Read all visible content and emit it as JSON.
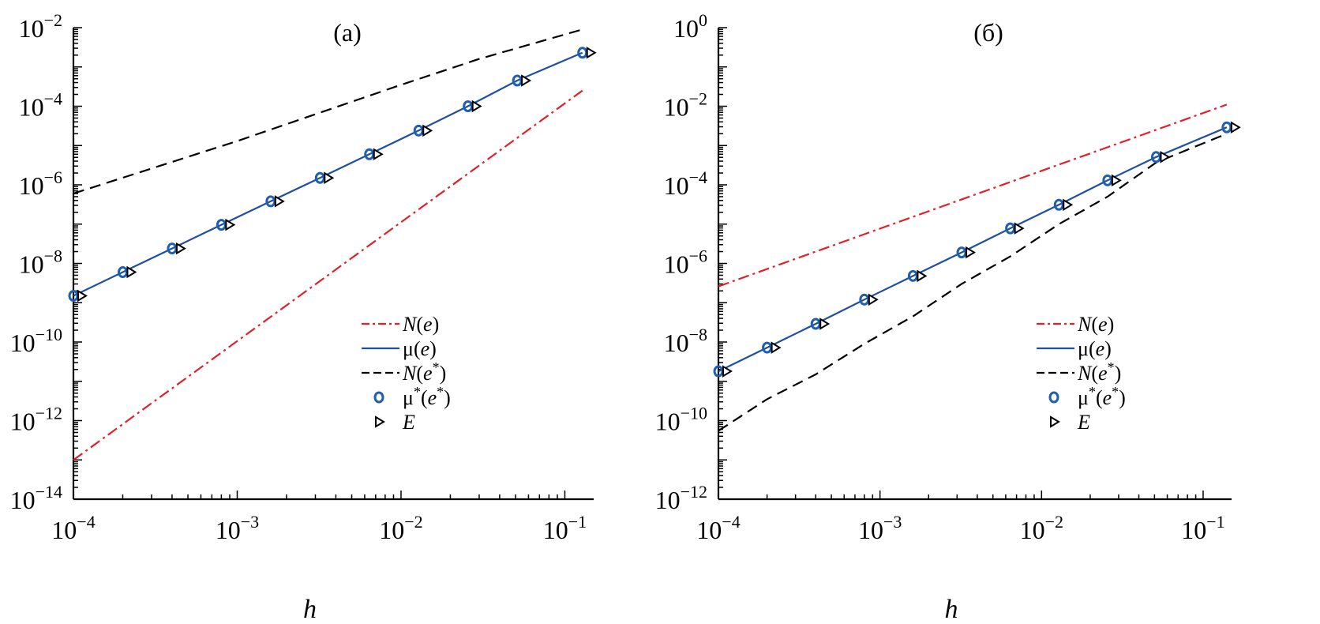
{
  "chart_data": [
    {
      "type": "line",
      "title": "(а)",
      "xlabel": "h",
      "ylabel": "",
      "xscale": "log",
      "yscale": "log",
      "xlim": [
        0.0001,
        0.15
      ],
      "ylim": [
        1e-14,
        0.01
      ],
      "xticks": [
        {
          "value": 0.0001,
          "base": "10",
          "exp": "−4"
        },
        {
          "value": 0.001,
          "base": "10",
          "exp": "−3"
        },
        {
          "value": 0.01,
          "base": "10",
          "exp": "−2"
        },
        {
          "value": 0.1,
          "base": "10",
          "exp": "−1"
        }
      ],
      "yticks": [
        {
          "value": 1e-14,
          "base": "10",
          "exp": "−14"
        },
        {
          "value": 1e-12,
          "base": "10",
          "exp": "−12"
        },
        {
          "value": 1e-10,
          "base": "10",
          "exp": "−10"
        },
        {
          "value": 1e-08,
          "base": "10",
          "exp": "−8"
        },
        {
          "value": 1e-06,
          "base": "10",
          "exp": "−6"
        },
        {
          "value": 0.0001,
          "base": "10",
          "exp": "−4"
        },
        {
          "value": 0.01,
          "base": "10",
          "exp": "−2"
        }
      ],
      "legend_position": "center-right",
      "series": [
        {
          "name": "N(e)",
          "style": "dash-dot",
          "color": "#e0202a",
          "x": [
            0.0001,
            0.128
          ],
          "y": [
            1e-13,
            0.00025
          ]
        },
        {
          "name": "μ(e)",
          "style": "solid",
          "color": "#1f4fa0",
          "x": [
            0.0001,
            0.0002,
            0.0004,
            0.0008,
            0.0016,
            0.0032,
            0.0064,
            0.0128,
            0.0256,
            0.0512,
            0.128
          ],
          "y": [
            1.5e-09,
            6e-09,
            2.4e-08,
            9.6e-08,
            3.8e-07,
            1.5e-06,
            6e-06,
            2.4e-05,
            0.0001,
            0.00045,
            0.0023
          ]
        },
        {
          "name": "N(e*)",
          "style": "dashed",
          "color": "#000000",
          "x": [
            0.0001,
            0.001,
            0.01,
            0.03,
            0.128
          ],
          "y": [
            6e-07,
            1.3e-05,
            0.00035,
            0.0016,
            0.009
          ]
        },
        {
          "name": "μ*(e*)",
          "style": "circle-marker",
          "color": "#1f5fb0",
          "x": [
            0.0001,
            0.0002,
            0.0004,
            0.0008,
            0.0016,
            0.0032,
            0.0064,
            0.0128,
            0.0256,
            0.0512,
            0.128
          ],
          "y": [
            1.5e-09,
            6e-09,
            2.4e-08,
            9.6e-08,
            3.8e-07,
            1.5e-06,
            6e-06,
            2.4e-05,
            0.0001,
            0.00045,
            0.0023
          ]
        },
        {
          "name": "E",
          "style": "triangle-marker",
          "color": "#000000",
          "x": [
            0.0001,
            0.0002,
            0.0004,
            0.0008,
            0.0016,
            0.0032,
            0.0064,
            0.0128,
            0.0256,
            0.0512,
            0.128
          ],
          "y": [
            1.5e-09,
            6e-09,
            2.4e-08,
            9.6e-08,
            3.8e-07,
            1.5e-06,
            6e-06,
            2.4e-05,
            0.0001,
            0.00045,
            0.0023
          ]
        }
      ]
    },
    {
      "type": "line",
      "title": "(б)",
      "xlabel": "h",
      "ylabel": "",
      "xscale": "log",
      "yscale": "log",
      "xlim": [
        0.0001,
        0.15
      ],
      "ylim": [
        1e-12,
        1
      ],
      "xticks": [
        {
          "value": 0.0001,
          "base": "10",
          "exp": "−4"
        },
        {
          "value": 0.001,
          "base": "10",
          "exp": "−3"
        },
        {
          "value": 0.01,
          "base": "10",
          "exp": "−2"
        },
        {
          "value": 0.1,
          "base": "10",
          "exp": "−1"
        }
      ],
      "yticks": [
        {
          "value": 1e-12,
          "base": "10",
          "exp": "−12"
        },
        {
          "value": 1e-10,
          "base": "10",
          "exp": "−10"
        },
        {
          "value": 1e-08,
          "base": "10",
          "exp": "−8"
        },
        {
          "value": 1e-06,
          "base": "10",
          "exp": "−6"
        },
        {
          "value": 0.0001,
          "base": "10",
          "exp": "−4"
        },
        {
          "value": 0.01,
          "base": "10",
          "exp": "−2"
        },
        {
          "value": 1,
          "base": "10",
          "exp": "0"
        }
      ],
      "legend_position": "center-right",
      "series": [
        {
          "name": "N(e)",
          "style": "dash-dot",
          "color": "#e0202a",
          "x": [
            0.0001,
            0.14
          ],
          "y": [
            2.6e-07,
            0.011
          ]
        },
        {
          "name": "μ(e)",
          "style": "solid",
          "color": "#1f4fa0",
          "x": [
            0.0001,
            0.0002,
            0.0004,
            0.0008,
            0.0016,
            0.0032,
            0.0064,
            0.0128,
            0.0256,
            0.0512,
            0.14
          ],
          "y": [
            1.8e-09,
            7.2e-09,
            2.9e-08,
            1.2e-07,
            4.8e-07,
            1.9e-06,
            7.8e-06,
            3.1e-05,
            0.00013,
            0.00051,
            0.0029
          ]
        },
        {
          "name": "N(e*)",
          "style": "dashed",
          "color": "#000000",
          "x": [
            0.0001,
            0.0002,
            0.0004,
            0.0008,
            0.0016,
            0.0032,
            0.0064,
            0.0128,
            0.0256,
            0.0512,
            0.14
          ],
          "y": [
            5.5e-11,
            3.5e-10,
            1.5e-09,
            9e-09,
            4.5e-08,
            3e-07,
            1.5e-06,
            1e-05,
            5e-05,
            0.00037,
            0.002
          ]
        },
        {
          "name": "μ*(e*)",
          "style": "circle-marker",
          "color": "#1f5fb0",
          "x": [
            0.0001,
            0.0002,
            0.0004,
            0.0008,
            0.0016,
            0.0032,
            0.0064,
            0.0128,
            0.0256,
            0.0512,
            0.14
          ],
          "y": [
            1.8e-09,
            7.2e-09,
            2.9e-08,
            1.2e-07,
            4.8e-07,
            1.9e-06,
            7.8e-06,
            3.1e-05,
            0.00013,
            0.00051,
            0.0029
          ]
        },
        {
          "name": "E",
          "style": "triangle-marker",
          "color": "#000000",
          "x": [
            0.0001,
            0.0002,
            0.0004,
            0.0008,
            0.0016,
            0.0032,
            0.0064,
            0.0128,
            0.0256,
            0.0512,
            0.14
          ],
          "y": [
            1.8e-09,
            7.2e-09,
            2.9e-08,
            1.2e-07,
            4.8e-07,
            1.9e-06,
            7.8e-06,
            3.1e-05,
            0.00013,
            0.00051,
            0.0029
          ]
        }
      ]
    }
  ]
}
